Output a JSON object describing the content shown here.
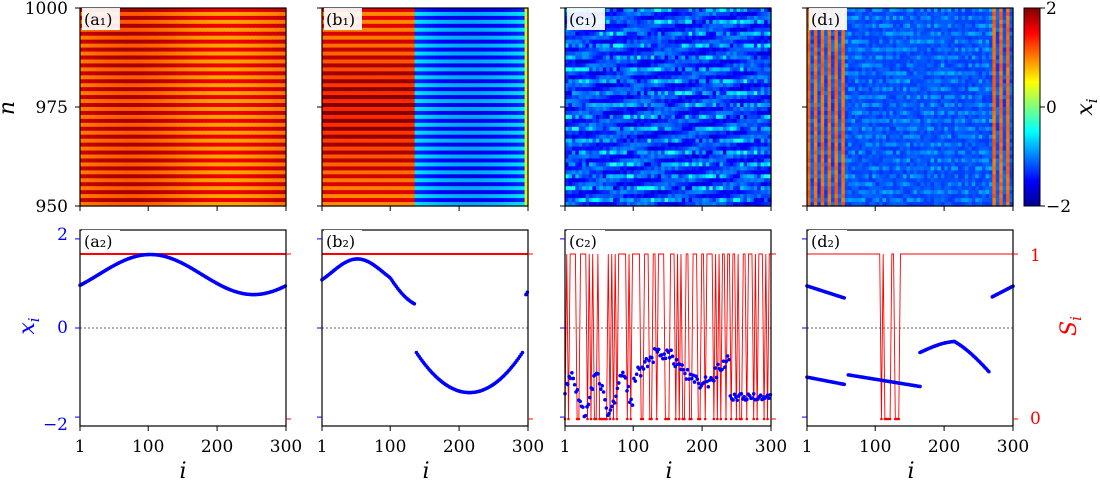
{
  "chart_data": {
    "type": "heatmap+scatter",
    "colorbar": {
      "label": "x_i",
      "ticks": [
        "2",
        "0",
        "−2"
      ],
      "range": [
        -2,
        2
      ]
    },
    "top": {
      "ylabel": "n",
      "yticks": [
        "1000",
        "975",
        "950"
      ],
      "yrange": [
        950,
        1000
      ],
      "panels": [
        {
          "label": "(a₁)",
          "pattern": "high-stripes"
        },
        {
          "label": "(b₁)",
          "pattern": "split"
        },
        {
          "label": "(c₁)",
          "pattern": "low-chaotic"
        },
        {
          "label": "(d₁)",
          "pattern": "mixed-columns"
        }
      ]
    },
    "bottom": {
      "ylabel_left": "x_i",
      "ylabel_right": "S_i",
      "yticks_left": [
        "2",
        "0",
        "−2"
      ],
      "yticks_right": [
        "1",
        "0"
      ],
      "xlabel": "i",
      "xticks": [
        "1",
        "100",
        "200",
        "300"
      ],
      "xrange": [
        1,
        300
      ],
      "panels": [
        {
          "label": "(a₂)",
          "kind": "sine",
          "amp": 0.45,
          "offset": 1.2,
          "period": 300,
          "phase": 28
        },
        {
          "label": "(b₂)",
          "kind": "split",
          "split": 135
        },
        {
          "label": "(c₂)",
          "kind": "chaotic"
        },
        {
          "label": "(d₂)",
          "kind": "mixed"
        }
      ]
    }
  }
}
